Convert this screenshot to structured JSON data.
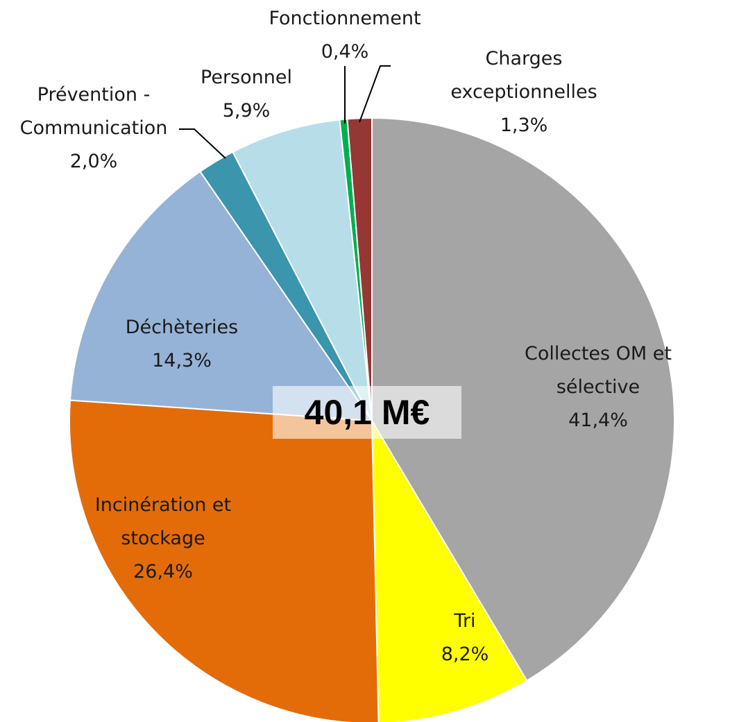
{
  "chart_data": {
    "type": "pie",
    "categories": [
      "Collectes OM et sélective",
      "Tri",
      "Incinération et stockage",
      "Déchèteries",
      "Prévention - Communication",
      "Personnel",
      "Fonctionnement",
      "Charges exceptionnelles"
    ],
    "values": [
      41.4,
      8.2,
      26.4,
      14.3,
      2.0,
      5.9,
      0.4,
      1.3
    ],
    "value_labels": [
      "41,4%",
      "8,2%",
      "26,4%",
      "14,3%",
      "2,0%",
      "5,9%",
      "0,4%",
      "1,3%"
    ],
    "colors": [
      "#a5a5a5",
      "#ffff00",
      "#e36c09",
      "#95b3d7",
      "#3a95ad",
      "#b7dde8",
      "#00b050",
      "#953735"
    ],
    "annotation": "40,1 M€"
  }
}
